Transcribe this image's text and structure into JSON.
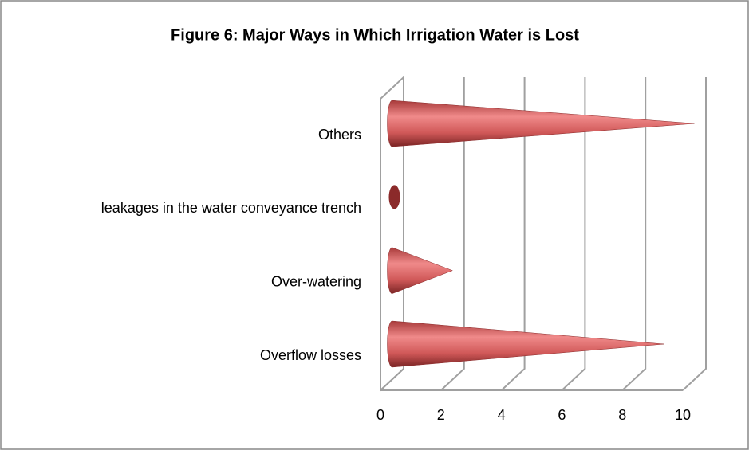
{
  "chart_data": {
    "type": "bar",
    "title": "Figure 6: Major Ways in Which Irrigation Water is Lost",
    "categories": [
      "Overflow losses",
      "Over-watering",
      "leakages in the water conveyance trench",
      "Others"
    ],
    "values": [
      9,
      2,
      0,
      10
    ],
    "color": "#c0504d",
    "xlim": [
      0,
      10
    ],
    "xticks": [
      0,
      2,
      4,
      6,
      8,
      10
    ],
    "grid": true
  }
}
